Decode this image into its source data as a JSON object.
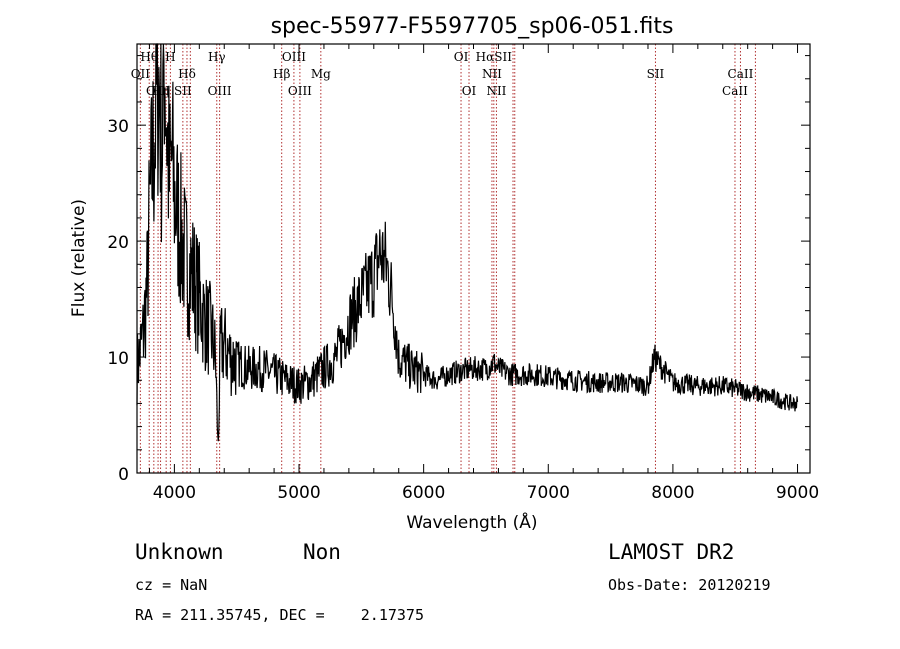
{
  "chart_data": {
    "type": "line",
    "title": "spec-55977-F5597705_sp06-051.fits",
    "xlabel": "Wavelength (Å)",
    "ylabel": "Flux (relative)",
    "xlim": [
      3700,
      9100
    ],
    "ylim": [
      0,
      37
    ],
    "x_ticks": [
      "4000",
      "5000",
      "6000",
      "7000",
      "8000",
      "9000"
    ],
    "y_ticks": [
      "0",
      "10",
      "20",
      "30"
    ],
    "series": [
      {
        "x": [
          3700,
          3750,
          3780,
          3800,
          3820,
          3850,
          3870,
          3900,
          3920,
          3940,
          3960,
          3980,
          4000,
          4030,
          4060,
          4100,
          4150,
          4200,
          4250,
          4300,
          4330,
          4350,
          4370,
          4400,
          4450,
          4500,
          4600,
          4700,
          4800,
          4900,
          5000,
          5100,
          5200,
          5300,
          5400,
          5500,
          5600,
          5650,
          5700,
          5750,
          5800,
          5900,
          6000,
          6100,
          6200,
          6300,
          6400,
          6500,
          6563,
          6600,
          6700,
          6800,
          6900,
          7000,
          7200,
          7400,
          7600,
          7800,
          7850,
          8000,
          8200,
          8400,
          8600,
          8800,
          8950,
          9000
        ],
        "y": [
          9,
          12,
          16,
          22,
          26,
          31,
          35,
          28,
          37,
          30,
          25,
          27,
          24,
          22,
          20,
          18,
          17,
          15,
          13,
          12,
          10,
          2,
          11,
          11,
          10,
          9.5,
          9,
          9,
          8.5,
          8,
          7.5,
          8,
          9,
          10,
          13,
          15,
          17,
          19,
          18,
          15,
          10,
          9,
          8.5,
          8,
          8.5,
          8.8,
          9,
          9,
          9.5,
          9,
          8.5,
          8.5,
          8.5,
          8.3,
          8,
          7.8,
          7.8,
          7.5,
          10,
          7.8,
          7.5,
          7.5,
          7,
          6.5,
          6,
          6
        ]
      }
    ],
    "line_markers": [
      {
        "name": "Hθ",
        "x": 3798,
        "row": 0
      },
      {
        "name": "H",
        "x": 3968,
        "row": 0
      },
      {
        "name": "Hγ",
        "x": 4340,
        "row": 0
      },
      {
        "name": "OIII",
        "x": 4959,
        "row": 0
      },
      {
        "name": "OI",
        "x": 6300,
        "row": 0
      },
      {
        "name": "HαSII",
        "x": 6563,
        "row": 0
      },
      {
        "name": "OII",
        "x": 3727,
        "row": 1
      },
      {
        "name": "Hδ",
        "x": 4101,
        "row": 1
      },
      {
        "name": "Hβ",
        "x": 4861,
        "row": 1
      },
      {
        "name": "Mg",
        "x": 5175,
        "row": 1
      },
      {
        "name": "NII",
        "x": 6548,
        "row": 1
      },
      {
        "name": "SII",
        "x": 7860,
        "row": 1
      },
      {
        "name": "CaII",
        "x": 8542,
        "row": 1
      },
      {
        "name": "OIII",
        "x": 3869,
        "row": 2
      },
      {
        "name": "Hη",
        "x": 3889,
        "row": 2
      },
      {
        "name": "SII",
        "x": 4068,
        "row": 2
      },
      {
        "name": "OIII",
        "x": 4363,
        "row": 2
      },
      {
        "name": "OIII",
        "x": 5007,
        "row": 2
      },
      {
        "name": "OI",
        "x": 6364,
        "row": 2
      },
      {
        "name": "NII",
        "x": 6584,
        "row": 2
      },
      {
        "name": "CaII",
        "x": 8498,
        "row": 2
      }
    ],
    "extra_marker_x": [
      3835,
      3934,
      4128,
      6717,
      6731,
      8662
    ]
  },
  "footer": {
    "class_label": "Unknown",
    "subclass_label": "Non",
    "cz": "cz = NaN",
    "radec": "RA = 211.35745, DEC =    2.17375",
    "survey": "LAMOST DR2",
    "obs_date": "Obs-Date: 20120219"
  },
  "colors": {
    "line_marker": "#b03030",
    "spectrum": "#000000",
    "axes": "#000000"
  }
}
